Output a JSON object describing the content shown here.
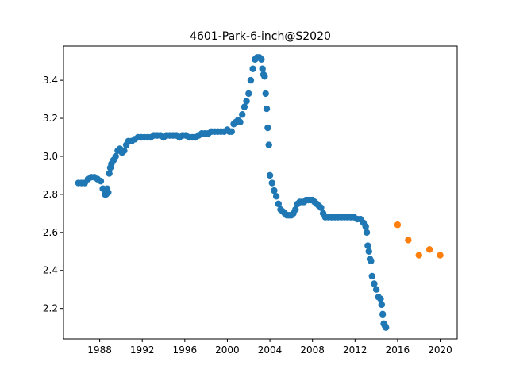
{
  "chart_data": {
    "type": "scatter",
    "title": "4601-Park-6-inch@S2020",
    "xlabel": "",
    "ylabel": "",
    "xlim": [
      1984.6,
      2021.6
    ],
    "ylim": [
      2.04,
      3.58
    ],
    "x_ticks": [
      1988,
      1992,
      1996,
      2000,
      2004,
      2008,
      2012,
      2016,
      2020
    ],
    "y_ticks": [
      2.2,
      2.4,
      2.6,
      2.8,
      3.0,
      3.2,
      3.4
    ],
    "grid": false,
    "series": [
      {
        "color": "#1f77b4",
        "x": [
          1986.0,
          1986.3,
          1986.6,
          1986.9,
          1987.2,
          1987.5,
          1987.8,
          1988.1,
          1988.3,
          1988.5,
          1988.6,
          1988.7,
          1988.8,
          1988.9,
          1989.0,
          1989.1,
          1989.3,
          1989.5,
          1989.7,
          1989.9,
          1990.1,
          1990.3,
          1990.5,
          1990.7,
          1991.0,
          1991.3,
          1991.6,
          1991.9,
          1992.2,
          1992.5,
          1992.8,
          1993.1,
          1993.4,
          1993.7,
          1994.0,
          1994.3,
          1994.6,
          1994.9,
          1995.2,
          1995.5,
          1995.8,
          1996.1,
          1996.4,
          1996.7,
          1997.0,
          1997.3,
          1997.6,
          1997.9,
          1998.2,
          1998.5,
          1998.8,
          1999.1,
          1999.4,
          1999.7,
          2000.0,
          2000.2,
          2000.4,
          2000.6,
          2000.8,
          2001.0,
          2001.2,
          2001.4,
          2001.6,
          2001.8,
          2002.0,
          2002.2,
          2002.4,
          2002.6,
          2002.8,
          2003.0,
          2003.2,
          2003.3,
          2003.4,
          2003.5,
          2003.6,
          2003.7,
          2003.8,
          2003.9,
          2004.0,
          2004.2,
          2004.4,
          2004.6,
          2004.8,
          2005.0,
          2005.2,
          2005.4,
          2005.6,
          2005.8,
          2006.0,
          2006.2,
          2006.4,
          2006.6,
          2006.8,
          2007.0,
          2007.2,
          2007.4,
          2007.6,
          2007.8,
          2008.0,
          2008.2,
          2008.4,
          2008.6,
          2008.8,
          2009.0,
          2009.2,
          2009.5,
          2009.8,
          2010.1,
          2010.4,
          2010.7,
          2011.0,
          2011.3,
          2011.6,
          2011.9,
          2012.2,
          2012.5,
          2012.8,
          2013.0,
          2013.1,
          2013.2,
          2013.3,
          2013.4,
          2013.5,
          2013.6,
          2013.8,
          2014.0,
          2014.2,
          2014.4,
          2014.5,
          2014.6,
          2014.7,
          2014.8,
          2014.9
        ],
        "y": [
          2.86,
          2.86,
          2.86,
          2.88,
          2.89,
          2.89,
          2.88,
          2.87,
          2.83,
          2.8,
          2.8,
          2.83,
          2.81,
          2.91,
          2.94,
          2.96,
          2.98,
          3.0,
          3.03,
          3.04,
          3.02,
          3.03,
          3.06,
          3.08,
          3.08,
          3.09,
          3.1,
          3.1,
          3.1,
          3.1,
          3.1,
          3.11,
          3.11,
          3.11,
          3.1,
          3.11,
          3.11,
          3.11,
          3.11,
          3.1,
          3.11,
          3.11,
          3.1,
          3.1,
          3.1,
          3.11,
          3.12,
          3.12,
          3.12,
          3.13,
          3.13,
          3.13,
          3.13,
          3.13,
          3.14,
          3.13,
          3.13,
          3.17,
          3.18,
          3.19,
          3.18,
          3.22,
          3.26,
          3.29,
          3.33,
          3.4,
          3.46,
          3.51,
          3.52,
          3.52,
          3.51,
          3.46,
          3.43,
          3.42,
          3.33,
          3.25,
          3.15,
          3.06,
          2.9,
          2.86,
          2.82,
          2.79,
          2.75,
          2.72,
          2.71,
          2.7,
          2.69,
          2.69,
          2.69,
          2.7,
          2.72,
          2.75,
          2.76,
          2.76,
          2.76,
          2.77,
          2.77,
          2.77,
          2.77,
          2.76,
          2.75,
          2.74,
          2.73,
          2.7,
          2.68,
          2.68,
          2.68,
          2.68,
          2.68,
          2.68,
          2.68,
          2.68,
          2.68,
          2.68,
          2.67,
          2.67,
          2.65,
          2.63,
          2.6,
          2.53,
          2.5,
          2.46,
          2.45,
          2.37,
          2.33,
          2.3,
          2.26,
          2.25,
          2.22,
          2.17,
          2.12,
          2.11,
          2.1
        ]
      },
      {
        "color": "#ff7f0e",
        "x": [
          2016,
          2017,
          2018,
          2019,
          2020
        ],
        "y": [
          2.64,
          2.56,
          2.48,
          2.51,
          2.48
        ]
      }
    ]
  }
}
